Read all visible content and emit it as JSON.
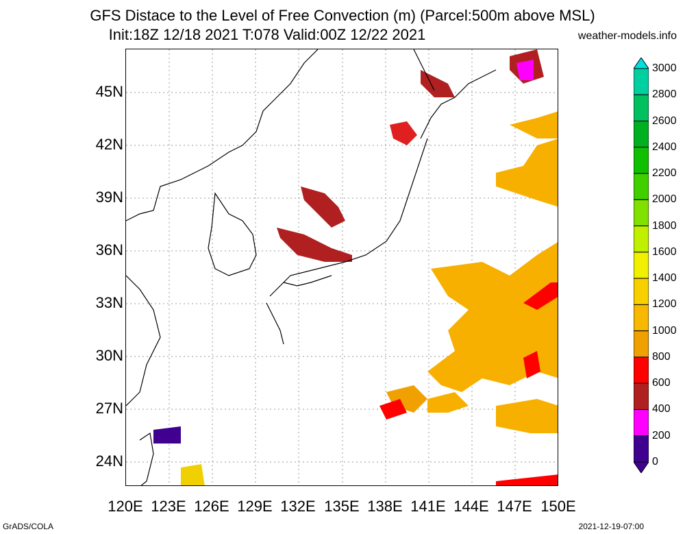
{
  "header": {
    "title_line1": "GFS Distace to the Level of Free Convection (m) (Parcel:500m above MSL)",
    "title_line2": "Init:18Z 12/18 2021 T:078 Valid:00Z 12/22 2021",
    "site": "weather-models.info"
  },
  "axes": {
    "lat_labels": [
      "45N",
      "42N",
      "39N",
      "36N",
      "33N",
      "30N",
      "27N",
      "24N"
    ],
    "lon_labels": [
      "120E",
      "123E",
      "126E",
      "129E",
      "132E",
      "135E",
      "138E",
      "141E",
      "144E",
      "147E",
      "150E"
    ]
  },
  "colorbar": {
    "labels": [
      "3000",
      "2800",
      "2600",
      "2400",
      "2200",
      "2000",
      "1800",
      "1600",
      "1400",
      "1200",
      "1000",
      "800",
      "600",
      "400",
      "200",
      "0"
    ],
    "colors": [
      "#00e0e0",
      "#00d0a0",
      "#00c060",
      "#00b020",
      "#10c000",
      "#40d000",
      "#80e000",
      "#c0f000",
      "#f0f000",
      "#f8d000",
      "#f8b800",
      "#f0a000",
      "#ff0000",
      "#b02020",
      "#ff00ff",
      "#400090"
    ]
  },
  "footer": {
    "left": "GrADS/COLA",
    "right": "2021-12-19-07:00"
  }
}
